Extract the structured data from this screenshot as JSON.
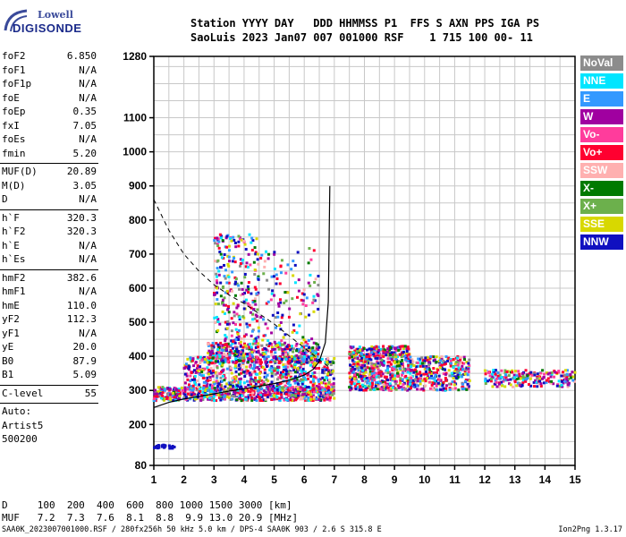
{
  "logo": {
    "line1": "Lowell",
    "line2": "DIGISONDE"
  },
  "header": {
    "line1": "Station YYYY DAY   DDD HHMMSS P1  FFS S AXN PPS IGA PS",
    "line2": "SaoLuis 2023 Jan07 007 001000 RSF    1 715 100 00- 11"
  },
  "params": {
    "group1": [
      {
        "label": "foF2",
        "value": "6.850"
      },
      {
        "label": "foF1",
        "value": "N/A"
      },
      {
        "label": "foF1p",
        "value": "N/A"
      },
      {
        "label": "foE",
        "value": "N/A"
      },
      {
        "label": "foEp",
        "value": "0.35"
      },
      {
        "label": "fxI",
        "value": "7.05"
      },
      {
        "label": "foEs",
        "value": "N/A"
      },
      {
        "label": "fmin",
        "value": "5.20"
      }
    ],
    "group2": [
      {
        "label": "MUF(D)",
        "value": "20.89"
      },
      {
        "label": "M(D)",
        "value": "3.05"
      },
      {
        "label": "D",
        "value": "N/A"
      }
    ],
    "group3": [
      {
        "label": "h`F",
        "value": "320.3"
      },
      {
        "label": "h`F2",
        "value": "320.3"
      },
      {
        "label": "h`E",
        "value": "N/A"
      },
      {
        "label": "h`Es",
        "value": "N/A"
      }
    ],
    "group4": [
      {
        "label": "hmF2",
        "value": "382.6"
      },
      {
        "label": "hmF1",
        "value": "N/A"
      },
      {
        "label": "hmE",
        "value": "110.0"
      },
      {
        "label": "yF2",
        "value": "112.3"
      },
      {
        "label": "yF1",
        "value": "N/A"
      },
      {
        "label": "yE",
        "value": "20.0"
      },
      {
        "label": "B0",
        "value": "87.9"
      },
      {
        "label": "B1",
        "value": "5.09"
      }
    ],
    "group5": [
      {
        "label": "C-level",
        "value": "55"
      }
    ],
    "auto": [
      "Auto:",
      "Artist5",
      "500200"
    ]
  },
  "legend": [
    {
      "label": "NoVal",
      "color": "#8c8c8c"
    },
    {
      "label": "NNE",
      "color": "#00e5ff"
    },
    {
      "label": "E",
      "color": "#3399ff"
    },
    {
      "label": "W",
      "color": "#a000a0"
    },
    {
      "label": "Vo-",
      "color": "#ff3c9c"
    },
    {
      "label": "Vo+",
      "color": "#ff0030"
    },
    {
      "label": "SSW",
      "color": "#ffb0b0"
    },
    {
      "label": "X-",
      "color": "#007a00"
    },
    {
      "label": "X+",
      "color": "#6cb04c"
    },
    {
      "label": "SSE",
      "color": "#d8d800"
    },
    {
      "label": "NNW",
      "color": "#1010c0"
    }
  ],
  "bottom": {
    "d_line": "D     100  200  400  600  800 1000 1500 3000 [km]",
    "muf_line": "MUF   7.2  7.3  7.6  8.1  8.8  9.9 13.0 20.9 [MHz]"
  },
  "footer": {
    "left": "SAA0K_2023007001000.RSF / 280fx256h 50 kHz 5.0 km / DPS-4 SAA0K 903 / 2.6 S 315.8 E",
    "right": "Ion2Png 1.3.17"
  },
  "chart_data": {
    "type": "scatter",
    "xlabel": "",
    "ylabel": "",
    "xlim": [
      1,
      15
    ],
    "ylim": [
      80,
      1280
    ],
    "x_ticks": [
      1,
      2,
      3,
      4,
      5,
      6,
      7,
      8,
      9,
      10,
      11,
      12,
      13,
      14,
      15
    ],
    "y_ticks": [
      80,
      200,
      300,
      400,
      500,
      600,
      700,
      800,
      900,
      1000,
      1100,
      1280
    ],
    "grid": true,
    "legend_position": "right",
    "profile_curve": {
      "x": [
        1.0,
        1.5,
        2.0,
        2.5,
        3.0,
        3.5,
        4.0,
        4.5,
        5.0,
        5.5,
        6.0,
        6.3,
        6.5,
        6.7,
        6.8,
        6.85
      ],
      "y": [
        250,
        265,
        275,
        282,
        290,
        298,
        305,
        312,
        320,
        330,
        345,
        362,
        385,
        440,
        560,
        900
      ]
    },
    "muf_curve": {
      "x": [
        1.0,
        1.5,
        2.0,
        2.5,
        3.0,
        3.5,
        4.0,
        4.5,
        5.0,
        5.5,
        6.0,
        6.5,
        6.8
      ],
      "y": [
        860,
        770,
        700,
        650,
        610,
        580,
        555,
        525,
        495,
        460,
        425,
        390,
        370
      ]
    },
    "echo_clusters": [
      {
        "x": [
          1.0,
          7.0
        ],
        "y": [
          270,
          310
        ],
        "n": 700
      },
      {
        "x": [
          2.0,
          7.0
        ],
        "y": [
          300,
          400
        ],
        "n": 700
      },
      {
        "x": [
          2.8,
          6.5
        ],
        "y": [
          380,
          440
        ],
        "n": 400
      },
      {
        "x": [
          3.0,
          4.5
        ],
        "y": [
          440,
          760
        ],
        "n": 260
      },
      {
        "x": [
          4.5,
          6.5
        ],
        "y": [
          420,
          720
        ],
        "n": 120
      },
      {
        "x": [
          7.5,
          9.5
        ],
        "y": [
          300,
          430
        ],
        "n": 600
      },
      {
        "x": [
          9.5,
          11.5
        ],
        "y": [
          300,
          400
        ],
        "n": 320
      },
      {
        "x": [
          12.0,
          15.0
        ],
        "y": [
          310,
          360
        ],
        "n": 220
      },
      {
        "x": [
          1.0,
          1.7
        ],
        "y": [
          130,
          140
        ],
        "n": 30
      }
    ]
  }
}
